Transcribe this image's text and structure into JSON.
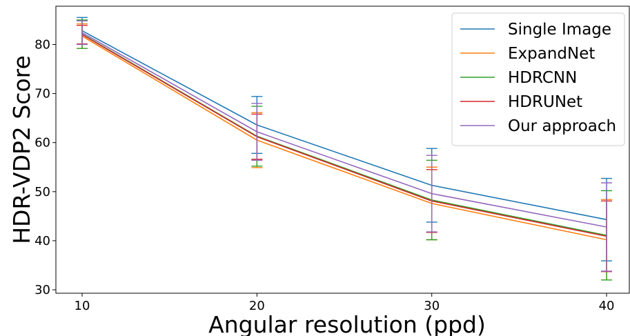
{
  "chart_data": {
    "type": "line",
    "title": "",
    "xlabel": "Angular resolution (ppd)",
    "ylabel": "HDR-VDP2 Score",
    "x": [
      10,
      20,
      30,
      40
    ],
    "xticks": [
      "10",
      "20",
      "30",
      "40"
    ],
    "xlim": [
      8.5,
      41.3
    ],
    "yticks": [
      "30",
      "40",
      "50",
      "60",
      "70",
      "80"
    ],
    "ylim": [
      29.3,
      87.8
    ],
    "grid": false,
    "legend_position": "top-right",
    "series": [
      {
        "name": "Single Image",
        "color": "#1f77b4",
        "values": [
          82.8,
          63.6,
          51.3,
          44.3
        ],
        "err": [
          2.7,
          5.8,
          7.5,
          8.4
        ]
      },
      {
        "name": "ExpandNet",
        "color": "#ff7f0e",
        "values": [
          81.7,
          60.5,
          47.6,
          40.2
        ],
        "err": [
          2.5,
          5.6,
          7.4,
          8.2
        ]
      },
      {
        "name": "HDRCNN",
        "color": "#2ca02c",
        "values": [
          82.1,
          61.3,
          48.3,
          41.1
        ],
        "err": [
          2.9,
          6.1,
          8.1,
          9.1
        ]
      },
      {
        "name": "HDRUNet",
        "color": "#d62728",
        "values": [
          82.0,
          61.2,
          48.1,
          40.9
        ],
        "err": [
          1.9,
          4.6,
          6.4,
          7.2
        ]
      },
      {
        "name": "Our approach",
        "color": "#9467bd",
        "values": [
          82.4,
          62.2,
          49.6,
          42.8
        ],
        "err": [
          2.4,
          5.8,
          7.8,
          9.0
        ]
      }
    ]
  }
}
